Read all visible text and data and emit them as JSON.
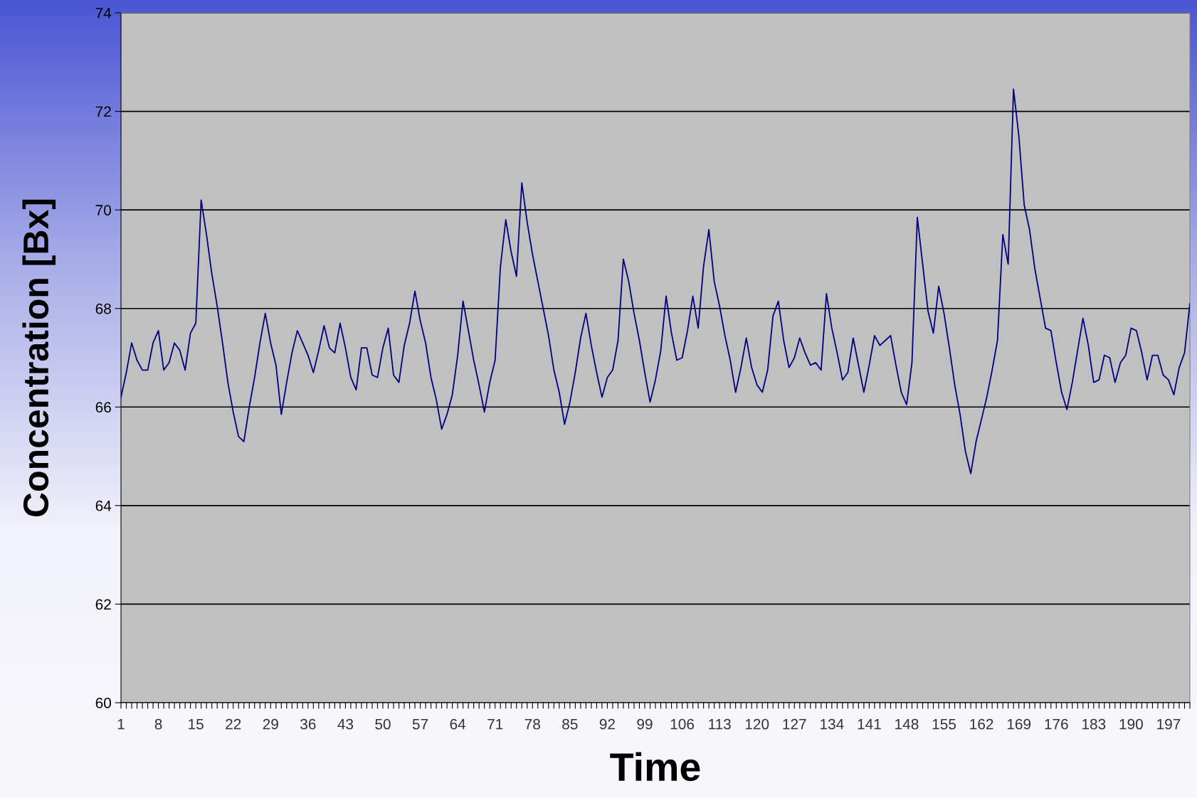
{
  "chart_data": {
    "type": "line",
    "xlabel": "Time",
    "ylabel": "Concentration [Bx]",
    "categories": [
      "1",
      null,
      null,
      null,
      null,
      null,
      null,
      "8",
      null,
      null,
      null,
      null,
      null,
      null,
      "15",
      null,
      null,
      null,
      null,
      null,
      null,
      "22",
      null,
      null,
      null,
      null,
      null,
      null,
      "29",
      null,
      null,
      null,
      null,
      null,
      null,
      "36",
      null,
      null,
      null,
      null,
      null,
      null,
      "43",
      null,
      null,
      null,
      null,
      null,
      null,
      "50",
      null,
      null,
      null,
      null,
      null,
      null,
      "57",
      null,
      null,
      null,
      null,
      null,
      null,
      "64",
      null,
      null,
      null,
      null,
      null,
      null,
      "71",
      null,
      null,
      null,
      null,
      null,
      null,
      "78",
      null,
      null,
      null,
      null,
      null,
      null,
      "85",
      null,
      null,
      null,
      null,
      null,
      null,
      "92",
      null,
      null,
      null,
      null,
      null,
      null,
      "99",
      null,
      null,
      null,
      null,
      null,
      null,
      "106",
      null,
      null,
      null,
      null,
      null,
      null,
      "113",
      null,
      null,
      null,
      null,
      null,
      null,
      "120",
      null,
      null,
      null,
      null,
      null,
      null,
      "127",
      null,
      null,
      null,
      null,
      null,
      null,
      "134",
      null,
      null,
      null,
      null,
      null,
      null,
      "141",
      null,
      null,
      null,
      null,
      null,
      null,
      "148",
      null,
      null,
      null,
      null,
      null,
      null,
      "155",
      null,
      null,
      null,
      null,
      null,
      null,
      "162",
      null,
      null,
      null,
      null,
      null,
      null,
      "169",
      null,
      null,
      null,
      null,
      null,
      null,
      "176",
      null,
      null,
      null,
      null,
      null,
      null,
      "183",
      null,
      null,
      null,
      null,
      null,
      null,
      "190",
      null,
      null,
      null,
      null,
      null,
      null,
      "197",
      null,
      null,
      null,
      null
    ],
    "series": [
      {
        "color": "#000080",
        "values": [
          66.2,
          66.7,
          67.3,
          66.95,
          66.75,
          66.75,
          67.3,
          67.55,
          66.75,
          66.9,
          67.3,
          67.15,
          66.75,
          67.5,
          67.7,
          70.2,
          69.5,
          68.7,
          68.05,
          67.3,
          66.5,
          65.9,
          65.4,
          65.3,
          66.0,
          66.6,
          67.3,
          67.9,
          67.3,
          66.85,
          65.85,
          66.5,
          67.1,
          67.55,
          67.3,
          67.05,
          66.7,
          67.15,
          67.65,
          67.2,
          67.1,
          67.7,
          67.2,
          66.6,
          66.35,
          67.2,
          67.2,
          66.65,
          66.6,
          67.2,
          67.6,
          66.65,
          66.5,
          67.25,
          67.7,
          68.35,
          67.75,
          67.3,
          66.6,
          66.15,
          65.55,
          65.85,
          66.25,
          67.05,
          68.15,
          67.55,
          66.95,
          66.45,
          65.9,
          66.5,
          66.95,
          68.85,
          69.8,
          69.15,
          68.65,
          70.55,
          69.75,
          69.1,
          68.55,
          68.0,
          67.45,
          66.75,
          66.3,
          65.65,
          66.1,
          66.7,
          67.4,
          67.9,
          67.25,
          66.7,
          66.2,
          66.6,
          66.75,
          67.35,
          69.0,
          68.55,
          67.9,
          67.35,
          66.7,
          66.1,
          66.55,
          67.15,
          68.25,
          67.5,
          66.95,
          67.0,
          67.55,
          68.25,
          67.6,
          68.85,
          69.6,
          68.55,
          68.05,
          67.45,
          66.95,
          66.3,
          66.8,
          67.4,
          66.8,
          66.45,
          66.3,
          66.75,
          67.85,
          68.15,
          67.35,
          66.8,
          67.0,
          67.4,
          67.1,
          66.85,
          66.9,
          66.75,
          68.3,
          67.6,
          67.1,
          66.55,
          66.7,
          67.4,
          66.85,
          66.3,
          66.85,
          67.45,
          67.25,
          67.35,
          67.45,
          66.85,
          66.3,
          66.05,
          66.9,
          69.85,
          68.9,
          67.95,
          67.5,
          68.45,
          67.9,
          67.2,
          66.45,
          65.85,
          65.1,
          64.65,
          65.3,
          65.75,
          66.2,
          66.75,
          67.35,
          69.5,
          68.9,
          72.45,
          71.5,
          70.1,
          69.6,
          68.8,
          68.2,
          67.6,
          67.55,
          66.9,
          66.3,
          65.95,
          66.5,
          67.15,
          67.8,
          67.25,
          66.5,
          66.55,
          67.05,
          67.0,
          66.5,
          66.9,
          67.05,
          67.6,
          67.55,
          67.1,
          66.55,
          67.05,
          67.05,
          66.65,
          66.55,
          66.25,
          66.8,
          67.1,
          68.1
        ]
      }
    ],
    "ylim": [
      60,
      74
    ],
    "yticks": [
      60,
      62,
      64,
      66,
      68,
      70,
      72,
      74
    ],
    "grid": "y",
    "legend": false,
    "marker": "none",
    "line_style": "solid"
  }
}
